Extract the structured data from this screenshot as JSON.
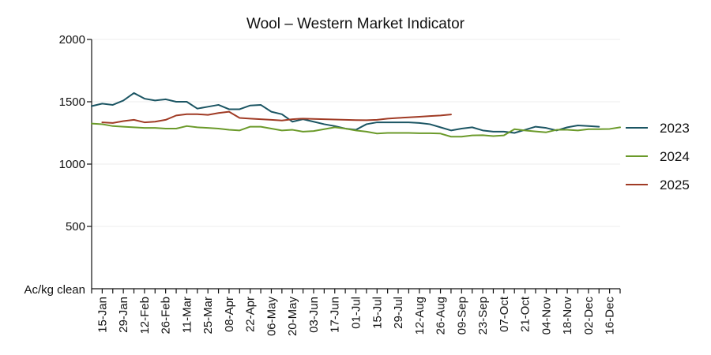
{
  "chart_data": {
    "type": "line",
    "title": "Wool – Western Market Indicator",
    "ylabel": "Ac/kg clean",
    "xlabel": "",
    "ylim": [
      0,
      2000
    ],
    "yticks": [
      500,
      1000,
      1500,
      2000
    ],
    "xlim": [
      0,
      50
    ],
    "grid": {
      "y": true,
      "x": false
    },
    "legend_position": "right",
    "xtick_labels": [
      "15-Jan",
      "29-Jan",
      "12-Feb",
      "26-Feb",
      "11-Mar",
      "25-Mar",
      "08-Apr",
      "22-Apr",
      "06-May",
      "20-May",
      "03-Jun",
      "17-Jun",
      "01-Jul",
      "15-Jul",
      "29-Jul",
      "12-Aug",
      "26-Aug",
      "09-Sep",
      "23-Sep",
      "07-Oct",
      "21-Oct",
      "04-Nov",
      "18-Nov",
      "02-Dec",
      "16-Dec"
    ],
    "series": [
      {
        "name": "2023",
        "color": "#1b5563",
        "points": [
          [
            0,
            1465
          ],
          [
            1,
            1485
          ],
          [
            2,
            1475
          ],
          [
            3,
            1510
          ],
          [
            4,
            1570
          ],
          [
            5,
            1525
          ],
          [
            6,
            1510
          ],
          [
            7,
            1520
          ],
          [
            8,
            1500
          ],
          [
            9,
            1500
          ],
          [
            10,
            1445
          ],
          [
            11,
            1460
          ],
          [
            12,
            1475
          ],
          [
            13,
            1440
          ],
          [
            14,
            1440
          ],
          [
            15,
            1470
          ],
          [
            16,
            1475
          ],
          [
            17,
            1420
          ],
          [
            18,
            1400
          ],
          [
            19,
            1340
          ],
          [
            20,
            1360
          ],
          [
            21,
            1340
          ],
          [
            22,
            1320
          ],
          [
            23,
            1305
          ],
          [
            24,
            1285
          ],
          [
            25,
            1275
          ],
          [
            26,
            1320
          ],
          [
            27,
            1335
          ],
          [
            28,
            1335
          ],
          [
            29,
            1335
          ],
          [
            30,
            1335
          ],
          [
            31,
            1330
          ],
          [
            32,
            1320
          ],
          [
            33,
            1295
          ],
          [
            34,
            1270
          ],
          [
            35,
            1285
          ],
          [
            36,
            1295
          ],
          [
            37,
            1270
          ],
          [
            38,
            1260
          ],
          [
            39,
            1260
          ],
          [
            40,
            1250
          ],
          [
            41,
            1275
          ],
          [
            42,
            1300
          ],
          [
            43,
            1290
          ],
          [
            44,
            1270
          ],
          [
            45,
            1295
          ],
          [
            46,
            1310
          ],
          [
            47,
            1305
          ],
          [
            48,
            1300
          ]
        ]
      },
      {
        "name": "2024",
        "color": "#6b9a2a",
        "points": [
          [
            0,
            1325
          ],
          [
            1,
            1320
          ],
          [
            2,
            1305
          ],
          [
            3,
            1300
          ],
          [
            4,
            1295
          ],
          [
            5,
            1290
          ],
          [
            6,
            1290
          ],
          [
            7,
            1285
          ],
          [
            8,
            1285
          ],
          [
            9,
            1305
          ],
          [
            10,
            1295
          ],
          [
            11,
            1290
          ],
          [
            12,
            1285
          ],
          [
            13,
            1275
          ],
          [
            14,
            1270
          ],
          [
            15,
            1300
          ],
          [
            16,
            1300
          ],
          [
            17,
            1285
          ],
          [
            18,
            1270
          ],
          [
            19,
            1275
          ],
          [
            20,
            1260
          ],
          [
            21,
            1265
          ],
          [
            22,
            1280
          ],
          [
            23,
            1295
          ],
          [
            24,
            1285
          ],
          [
            25,
            1270
          ],
          [
            26,
            1260
          ],
          [
            27,
            1245
          ],
          [
            28,
            1250
          ],
          [
            29,
            1250
          ],
          [
            30,
            1250
          ],
          [
            31,
            1248
          ],
          [
            32,
            1248
          ],
          [
            33,
            1245
          ],
          [
            34,
            1220
          ],
          [
            35,
            1220
          ],
          [
            36,
            1230
          ],
          [
            37,
            1232
          ],
          [
            38,
            1225
          ],
          [
            39,
            1230
          ],
          [
            40,
            1280
          ],
          [
            41,
            1270
          ],
          [
            42,
            1262
          ],
          [
            43,
            1255
          ],
          [
            44,
            1275
          ],
          [
            45,
            1275
          ],
          [
            46,
            1270
          ],
          [
            47,
            1280
          ],
          [
            48,
            1280
          ],
          [
            49,
            1282
          ],
          [
            50,
            1295
          ]
        ]
      },
      {
        "name": "2025",
        "color": "#a03b25",
        "points": [
          [
            1,
            1335
          ],
          [
            2,
            1330
          ],
          [
            3,
            1345
          ],
          [
            4,
            1355
          ],
          [
            5,
            1335
          ],
          [
            6,
            1340
          ],
          [
            7,
            1355
          ],
          [
            8,
            1390
          ],
          [
            9,
            1400
          ],
          [
            10,
            1400
          ],
          [
            11,
            1395
          ],
          [
            12,
            1410
          ],
          [
            13,
            1420
          ],
          [
            14,
            1370
          ],
          [
            15,
            1365
          ],
          [
            16,
            1360
          ],
          [
            17,
            1355
          ],
          [
            18,
            1350
          ],
          [
            19,
            1360
          ],
          [
            20,
            1365
          ],
          [
            21,
            1362
          ],
          [
            22,
            1360
          ],
          [
            23,
            1358
          ],
          [
            24,
            1355
          ],
          [
            25,
            1353
          ],
          [
            26,
            1352
          ],
          [
            27,
            1355
          ],
          [
            28,
            1365
          ],
          [
            29,
            1370
          ],
          [
            30,
            1375
          ],
          [
            31,
            1380
          ],
          [
            32,
            1385
          ],
          [
            33,
            1390
          ],
          [
            34,
            1398
          ]
        ]
      }
    ]
  }
}
